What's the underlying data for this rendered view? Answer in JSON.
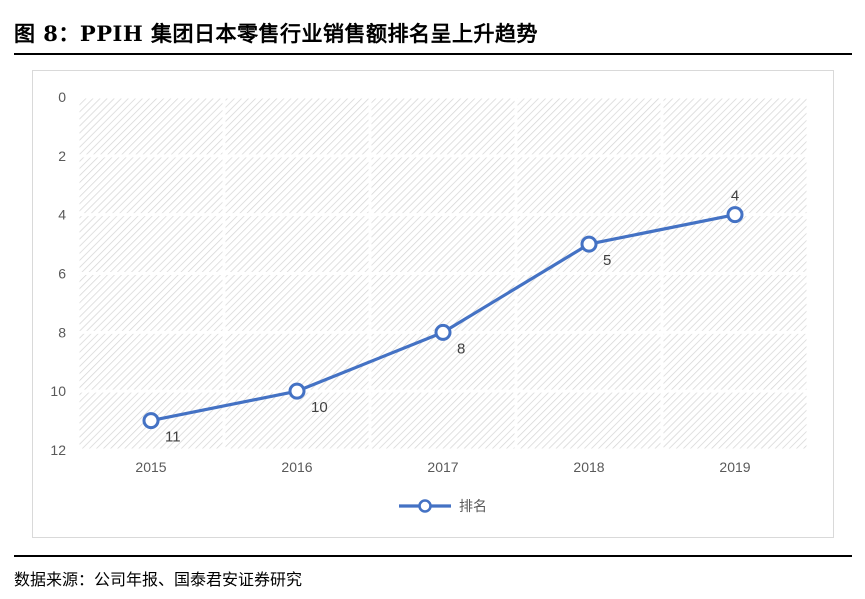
{
  "header": {
    "title": "图 8：PPIH 集团日本零售行业销售额排名呈上升趋势"
  },
  "footer": {
    "source": "数据来源：公司年报、国泰君安证券研究"
  },
  "chart_data": {
    "type": "line",
    "categories": [
      "2015",
      "2016",
      "2017",
      "2018",
      "2019"
    ],
    "series": [
      {
        "name": "排名",
        "values": [
          11,
          10,
          8,
          5,
          4
        ],
        "color": "#4472C4"
      }
    ],
    "y_ticks": [
      "0",
      "2",
      "4",
      "6",
      "8",
      "10",
      "12"
    ],
    "ylim": [
      0,
      12
    ],
    "y_reversed": true,
    "grid": true,
    "plot_fill": "diagonal-hatch",
    "legend": "bottom-center",
    "data_labels": true
  }
}
